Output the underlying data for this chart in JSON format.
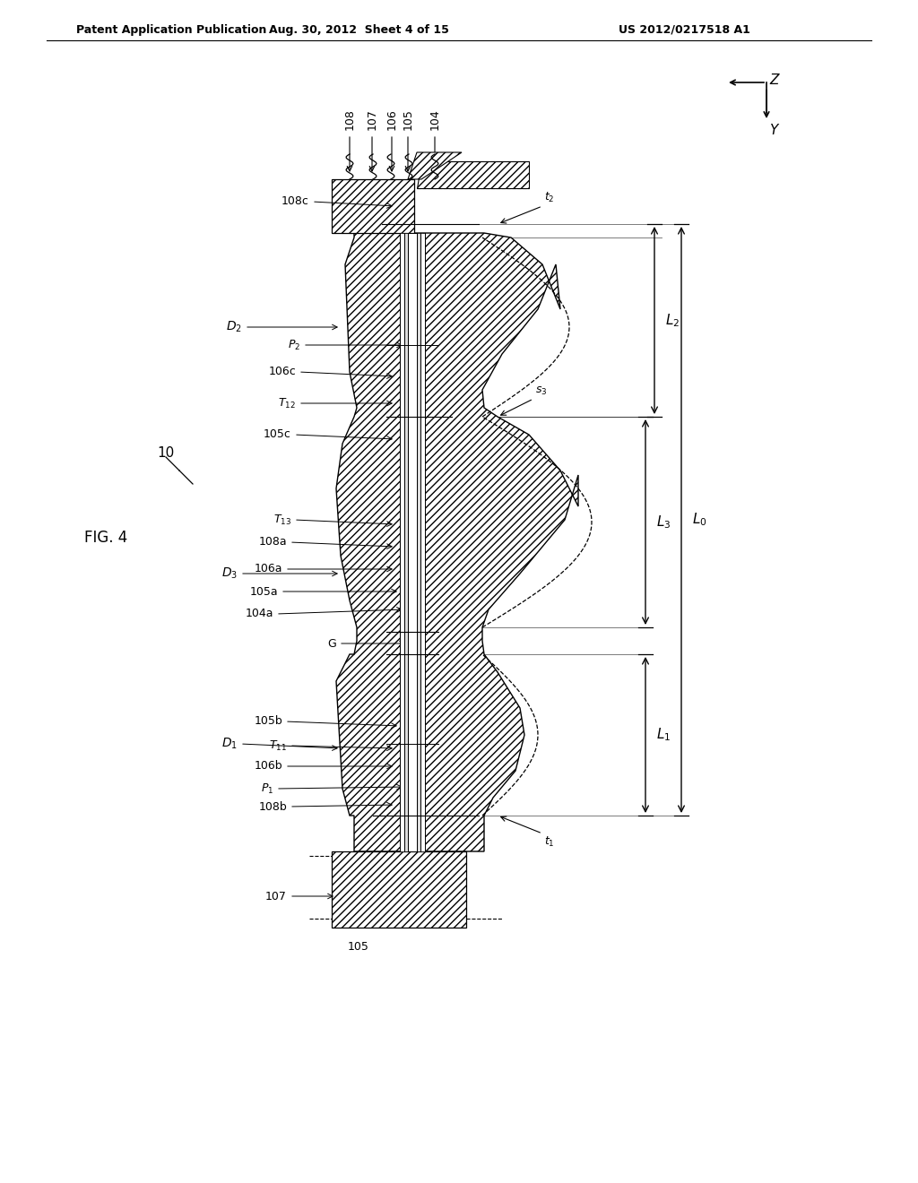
{
  "bg_color": "#ffffff",
  "header_left": "Patent Application Publication",
  "header_mid": "Aug. 30, 2012  Sheet 4 of 15",
  "header_right": "US 2012/0217518 A1",
  "fig_label": "FIG. 4",
  "device_label": "10"
}
